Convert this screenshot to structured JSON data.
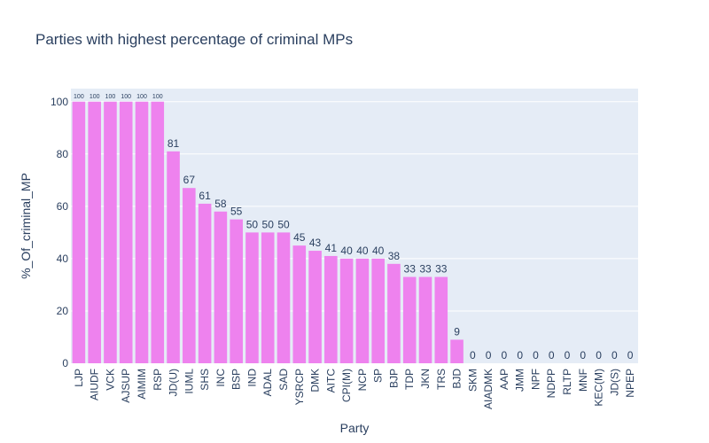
{
  "chart_data": {
    "type": "bar",
    "title": "Parties with highest percentage of criminal MPs",
    "xlabel": "Party",
    "ylabel": "%_Of_criminal_MP",
    "categories": [
      "LJP",
      "AIUDF",
      "VCK",
      "AJSUP",
      "AIMIM",
      "RSP",
      "JD(U)",
      "IUML",
      "SHS",
      "INC",
      "BSP",
      "IND",
      "ADAL",
      "SAD",
      "YSRCP",
      "DMK",
      "AITC",
      "CPI(M)",
      "NCP",
      "SP",
      "BJP",
      "TDP",
      "JKN",
      "TRS",
      "BJD",
      "SKM",
      "AIADMK",
      "AAP",
      "JMM",
      "NPF",
      "NDPP",
      "RLTP",
      "MNF",
      "KEC(M)",
      "JD(S)",
      "NPEP"
    ],
    "values": [
      100,
      100,
      100,
      100,
      100,
      100,
      81,
      67,
      61,
      58,
      55,
      50,
      50,
      50,
      45,
      43,
      41,
      40,
      40,
      40,
      38,
      33,
      33,
      33,
      9,
      0,
      0,
      0,
      0,
      0,
      0,
      0,
      0,
      0,
      0,
      0
    ],
    "data_labels": [
      "100",
      "100",
      "100",
      "100",
      "100",
      "100",
      "81",
      "67",
      "61",
      "58",
      "55",
      "50",
      "50",
      "50",
      "45",
      "43",
      "41",
      "40",
      "40",
      "40",
      "38",
      "33",
      "33",
      "33",
      "9",
      "0",
      "0",
      "0",
      "0",
      "0",
      "0",
      "0",
      "0",
      "0",
      "0",
      "0"
    ],
    "ylim": [
      0,
      105
    ],
    "y_ticks": [
      0,
      20,
      40,
      60,
      80,
      100
    ],
    "y_tick_labels": [
      "0",
      "20",
      "40",
      "60",
      "80",
      "100"
    ],
    "grid": true,
    "colors": {
      "bar": "#ee82ee",
      "plot_bg": "#e5ecf6",
      "grid": "#ffffff",
      "text": "#2a3f5f"
    }
  }
}
